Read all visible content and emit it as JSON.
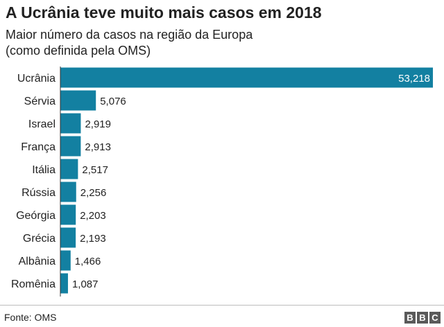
{
  "title": "A Ucrânia teve muito mais casos em 2018",
  "subtitle_line1": "Maior número da casos na região da Europa",
  "subtitle_line2": "(como definida pela OMS)",
  "source": "Fonte: OMS",
  "logo_text": "BBC",
  "colors": {
    "bar": "#1380A1",
    "inside_label": "#ffffff",
    "label": "#222222",
    "axis": "#333333"
  },
  "chart_data": {
    "type": "bar",
    "orientation": "horizontal",
    "title": "A Ucrânia teve muito mais casos em 2018",
    "subtitle": "Maior número da casos na região da Europa (como definida pela OMS)",
    "categories": [
      "Ucrânia",
      "Sérvia",
      "Israel",
      "França",
      "Itália",
      "Rússia",
      "Geórgia",
      "Grécia",
      "Albânia",
      "Romênia"
    ],
    "values": [
      53218,
      5076,
      2919,
      2913,
      2517,
      2256,
      2203,
      2193,
      1466,
      1087
    ],
    "value_labels": [
      "53,218",
      "5,076",
      "2,919",
      "2,913",
      "2,517",
      "2,256",
      "2,203",
      "2,193",
      "1,466",
      "1,087"
    ],
    "xlim": [
      0,
      53218
    ],
    "grid": false,
    "legend": "none"
  }
}
